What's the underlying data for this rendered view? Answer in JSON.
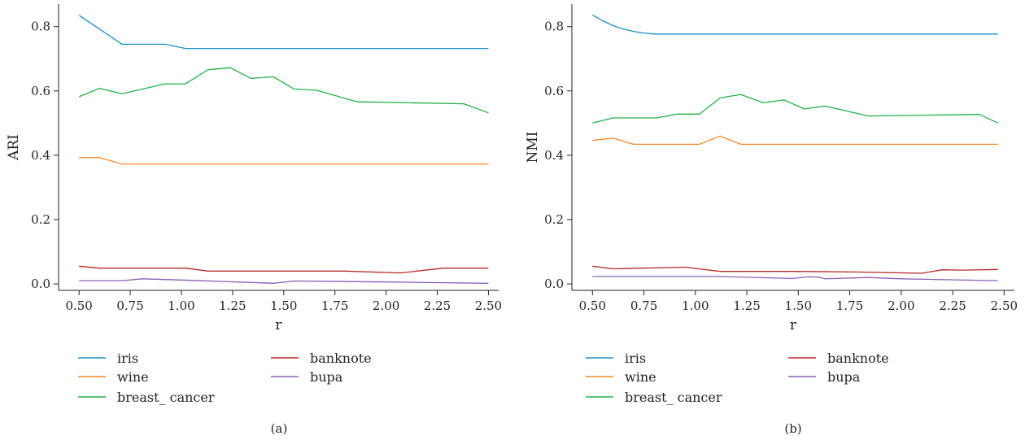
{
  "colors": {
    "iris": "#1f8fc6",
    "wine": "#f28a2e",
    "breast_cancer": "#24b14b",
    "banknote": "#b8292a",
    "bupa": "#8a60b5"
  },
  "chart_data": [
    {
      "type": "line",
      "panel_label": "(a)",
      "xlabel": "r",
      "ylabel": "ARI",
      "xlim": [
        0.4,
        2.55
      ],
      "ylim": [
        -0.02,
        0.87
      ],
      "xticks": [
        0.5,
        0.75,
        1.0,
        1.25,
        1.5,
        1.75,
        2.0,
        2.25,
        2.5
      ],
      "xtick_labels": [
        "0.50",
        "0.75",
        "1.00",
        "1.25",
        "1.50",
        "1.75",
        "2.00",
        "2.25",
        "2.50"
      ],
      "yticks": [
        0.0,
        0.2,
        0.4,
        0.6,
        0.8
      ],
      "ytick_labels": [
        "0.0",
        "0.2",
        "0.4",
        "0.6",
        "0.8"
      ],
      "legend_position": "bottom",
      "series": [
        {
          "name": "iris",
          "key": "iris",
          "x": [
            0.5,
            0.71,
            0.92,
            1.02,
            1.25,
            1.5,
            2.0,
            2.5
          ],
          "y": [
            0.835,
            0.745,
            0.745,
            0.732,
            0.732,
            0.732,
            0.732,
            0.732
          ]
        },
        {
          "name": "wine",
          "key": "wine",
          "x": [
            0.5,
            0.6,
            0.71,
            0.8,
            1.0,
            1.5,
            2.0,
            2.5
          ],
          "y": [
            0.393,
            0.393,
            0.373,
            0.373,
            0.373,
            0.373,
            0.373,
            0.373
          ]
        },
        {
          "name": "breast_ cancer",
          "key": "breast_cancer",
          "x": [
            0.5,
            0.6,
            0.71,
            0.92,
            1.02,
            1.13,
            1.24,
            1.34,
            1.45,
            1.55,
            1.66,
            1.86,
            2.38,
            2.5
          ],
          "y": [
            0.582,
            0.608,
            0.591,
            0.622,
            0.622,
            0.666,
            0.672,
            0.639,
            0.644,
            0.606,
            0.602,
            0.566,
            0.56,
            0.532
          ]
        },
        {
          "name": "banknote",
          "key": "banknote",
          "x": [
            0.5,
            0.6,
            0.71,
            1.02,
            1.13,
            1.5,
            1.8,
            2.07,
            2.28,
            2.5
          ],
          "y": [
            0.055,
            0.049,
            0.049,
            0.049,
            0.04,
            0.04,
            0.04,
            0.034,
            0.049,
            0.049
          ]
        },
        {
          "name": "bupa",
          "key": "bupa",
          "x": [
            0.5,
            0.71,
            0.81,
            1.0,
            1.45,
            1.55,
            2.0,
            2.5
          ],
          "y": [
            0.01,
            0.01,
            0.016,
            0.012,
            0.002,
            0.009,
            0.006,
            0.002
          ]
        }
      ]
    },
    {
      "type": "line",
      "panel_label": "(b)",
      "xlabel": "r",
      "ylabel": "NMI",
      "xlim": [
        0.4,
        2.55
      ],
      "ylim": [
        -0.02,
        0.87
      ],
      "xticks": [
        0.5,
        0.75,
        1.0,
        1.25,
        1.5,
        1.75,
        2.0,
        2.25,
        2.5
      ],
      "xtick_labels": [
        "0.50",
        "0.75",
        "1.00",
        "1.25",
        "1.50",
        "1.75",
        "2.00",
        "2.25",
        "2.50"
      ],
      "yticks": [
        0.0,
        0.2,
        0.4,
        0.6,
        0.8
      ],
      "ytick_labels": [
        "0.0",
        "0.2",
        "0.4",
        "0.6",
        "0.8"
      ],
      "legend_position": "bottom",
      "series": [
        {
          "name": "iris",
          "key": "iris",
          "x": [
            0.5,
            0.55,
            0.6,
            0.65,
            0.7,
            0.75,
            0.8,
            0.85,
            1.0,
            1.5,
            2.0,
            2.47
          ],
          "y": [
            0.836,
            0.818,
            0.803,
            0.792,
            0.785,
            0.78,
            0.777,
            0.777,
            0.777,
            0.777,
            0.777,
            0.777
          ]
        },
        {
          "name": "wine",
          "key": "wine",
          "x": [
            0.5,
            0.6,
            0.7,
            1.02,
            1.12,
            1.22,
            1.5,
            2.0,
            2.47
          ],
          "y": [
            0.446,
            0.453,
            0.434,
            0.434,
            0.46,
            0.434,
            0.434,
            0.434,
            0.434
          ]
        },
        {
          "name": "breast_ cancer",
          "key": "breast_cancer",
          "x": [
            0.5,
            0.6,
            0.81,
            0.91,
            1.02,
            1.12,
            1.22,
            1.33,
            1.43,
            1.53,
            1.63,
            1.84,
            2.38,
            2.47
          ],
          "y": [
            0.5,
            0.516,
            0.516,
            0.528,
            0.528,
            0.578,
            0.589,
            0.563,
            0.572,
            0.544,
            0.553,
            0.522,
            0.527,
            0.5
          ]
        },
        {
          "name": "banknote",
          "key": "banknote",
          "x": [
            0.5,
            0.6,
            0.95,
            1.12,
            1.5,
            1.8,
            2.1,
            2.2,
            2.3,
            2.47
          ],
          "y": [
            0.055,
            0.047,
            0.052,
            0.039,
            0.039,
            0.037,
            0.033,
            0.044,
            0.043,
            0.045
          ]
        },
        {
          "name": "bupa",
          "key": "bupa",
          "x": [
            0.5,
            0.81,
            1.12,
            1.47,
            1.55,
            1.6,
            1.63,
            1.84,
            2.0,
            2.47
          ],
          "y": [
            0.023,
            0.023,
            0.023,
            0.017,
            0.022,
            0.021,
            0.016,
            0.02,
            0.016,
            0.01
          ]
        }
      ]
    }
  ]
}
